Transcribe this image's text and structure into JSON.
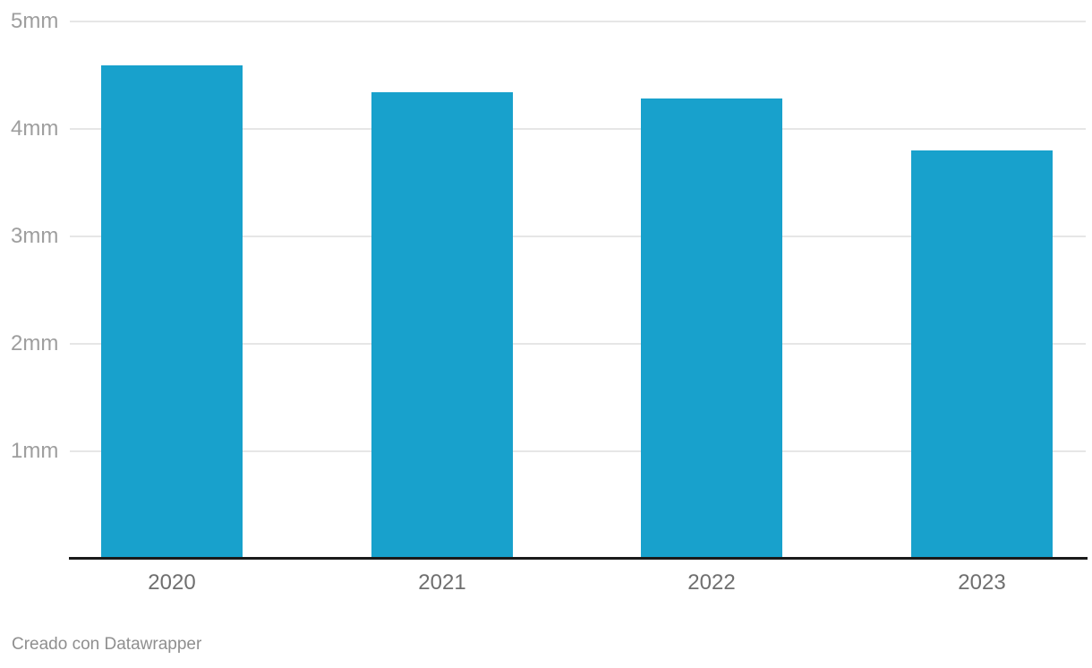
{
  "chart_data": {
    "type": "bar",
    "categories": [
      "2020",
      "2021",
      "2022",
      "2023"
    ],
    "values": [
      4.59,
      4.34,
      4.28,
      3.8
    ],
    "series_name": "",
    "title": "",
    "xlabel": "",
    "ylabel": "",
    "ylim": [
      0,
      5
    ],
    "y_ticks": [
      {
        "value": 5,
        "label": "5mm"
      },
      {
        "value": 4,
        "label": "4mm"
      },
      {
        "value": 3,
        "label": "3mm"
      },
      {
        "value": 2,
        "label": "2mm"
      },
      {
        "value": 1,
        "label": "1mm"
      }
    ],
    "grid": true,
    "legend": "none"
  },
  "colors": {
    "bar": "#18a1cc",
    "gridline": "#e6e6e6",
    "axis_line": "#1a1a1a",
    "y_tick_label": "#9e9e9e",
    "x_tick_label": "#6f6f6f",
    "footer_text": "#8f8f8f",
    "background": "#ffffff"
  },
  "footer": {
    "text": "Creado con Datawrapper"
  }
}
